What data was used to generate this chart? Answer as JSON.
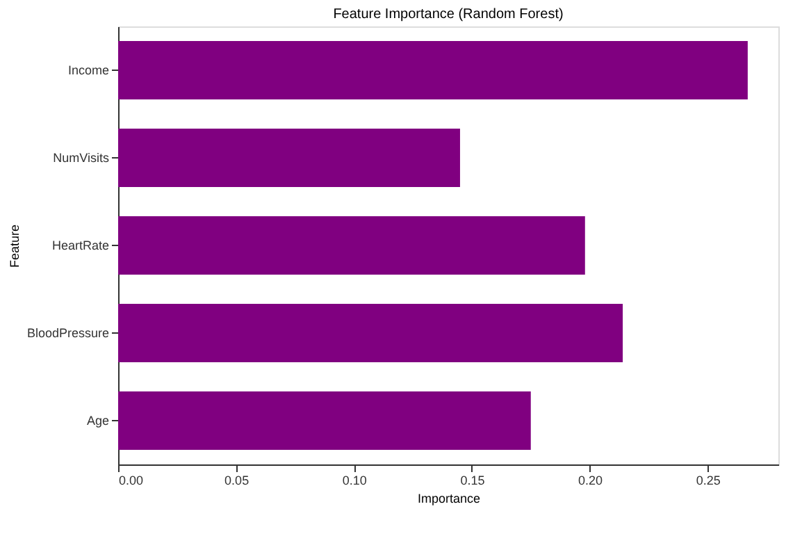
{
  "chart_data": {
    "type": "bar",
    "orientation": "horizontal",
    "title": "Feature Importance (Random Forest)",
    "xlabel": "Importance",
    "ylabel": "Feature",
    "categories": [
      "Income",
      "NumVisits",
      "HeartRate",
      "BloodPressure",
      "Age"
    ],
    "values": [
      0.267,
      0.145,
      0.198,
      0.214,
      0.175
    ],
    "color": "#800080",
    "xlim": [
      0,
      0.28
    ],
    "xticks": [
      {
        "value": 0,
        "label": "0.00"
      },
      0.05,
      {
        "value": 0.1,
        "label": "0.10"
      },
      0.15,
      {
        "value": 0.2,
        "label": "0.20"
      },
      0.25
    ],
    "grid": false
  }
}
